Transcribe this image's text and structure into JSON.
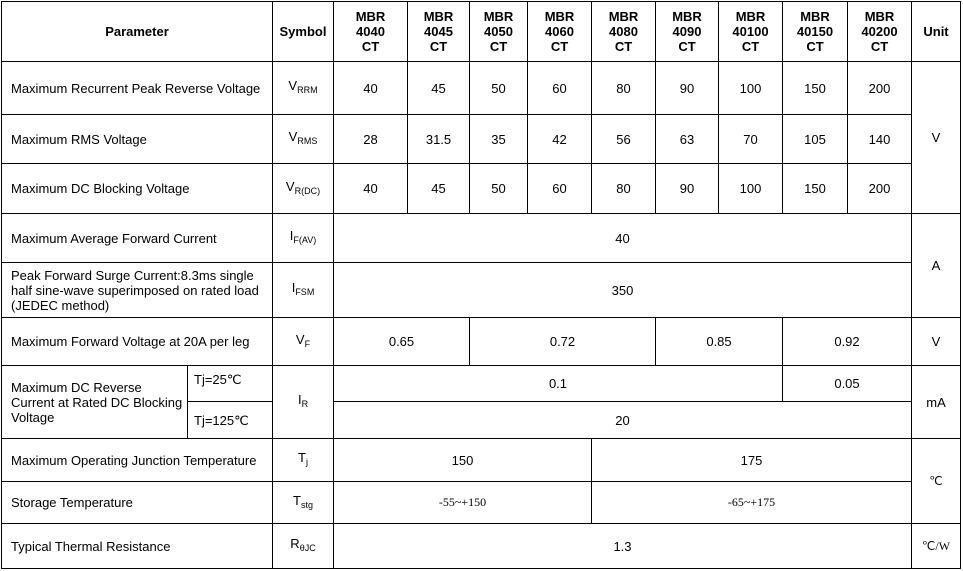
{
  "header": {
    "parameter": "Parameter",
    "symbol": "Symbol",
    "models": [
      "MBR 4040 CT",
      "MBR 4045 CT",
      "MBR 4050 CT",
      "MBR 4060 CT",
      "MBR 4080 CT",
      "MBR 4090 CT",
      "MBR 40100 CT",
      "MBR 40150 CT",
      "MBR 40200 CT"
    ],
    "unit": "Unit"
  },
  "rows": {
    "vrrm": {
      "label": "Maximum Recurrent Peak Reverse Voltage",
      "sym": "V",
      "sub": "RRM",
      "values": [
        "40",
        "45",
        "50",
        "60",
        "80",
        "90",
        "100",
        "150",
        "200"
      ]
    },
    "vrms": {
      "label": "Maximum RMS Voltage",
      "sym": "V",
      "sub": "RMS",
      "values": [
        "28",
        "31.5",
        "35",
        "42",
        "56",
        "63",
        "70",
        "105",
        "140"
      ]
    },
    "vdc": {
      "label": "Maximum DC Blocking Voltage",
      "sym": "V",
      "sub": "R(DC)",
      "values": [
        "40",
        "45",
        "50",
        "60",
        "80",
        "90",
        "100",
        "150",
        "200"
      ]
    },
    "voltage_unit": "V",
    "ifav": {
      "label": "Maximum Average Forward Current",
      "sym": "I",
      "sub": "F(AV)",
      "value": "40"
    },
    "ifsm": {
      "label": "Peak Forward Surge Current:8.3ms single half sine-wave superimposed on rated load (JEDEC method)",
      "sym": "I",
      "sub": "FSM",
      "value": "350"
    },
    "current_unit": "A",
    "vf": {
      "label": "Maximum Forward Voltage at 20A per leg",
      "sym": "V",
      "sub": "F",
      "values": [
        "0.65",
        "0.72",
        "0.85",
        "0.92"
      ],
      "unit": "V"
    },
    "ir": {
      "label": "Maximum DC Reverse Current at Rated DC Blocking Voltage",
      "cond1": "Tj=25℃",
      "cond2": "Tj=125℃",
      "sym": "I",
      "sub": "R",
      "values25": [
        "0.1",
        "0.05"
      ],
      "value125": "20",
      "unit": "mA"
    },
    "tj": {
      "label": "Maximum Operating Junction Temperature",
      "sym": "T",
      "sub": "j",
      "values": [
        "150",
        "175"
      ]
    },
    "tstg": {
      "label": "Storage Temperature",
      "sym": "T",
      "sub": "stg",
      "values": [
        "-55~+150",
        "-65~+175"
      ]
    },
    "temp_unit": "℃",
    "rth": {
      "label": "Typical Thermal Resistance",
      "sym": "R",
      "sub": "θJC",
      "value": "1.3",
      "unit": "℃/W"
    }
  }
}
